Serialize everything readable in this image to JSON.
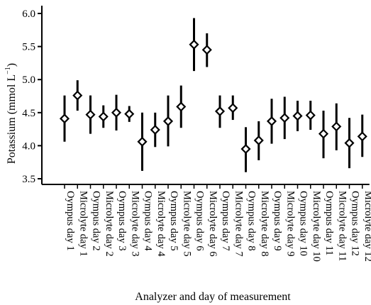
{
  "chart_data": {
    "type": "scatter",
    "title": "",
    "xlabel": "Analyzer and day of measurement",
    "ylabel_main": "Potassium (mmol L",
    "ylabel_sup": "−1",
    "ylabel_tail": ")",
    "ylim": [
      3.4,
      6.1
    ],
    "yticks": [
      3.5,
      4.0,
      4.5,
      5.0,
      5.5,
      6.0
    ],
    "ytick_labels": [
      "3.5",
      "4.0",
      "4.5",
      "5.0",
      "5.5",
      "6.0"
    ],
    "grid": false,
    "legend": "none",
    "marker": "open-diamond",
    "color": "#000000",
    "categories": [
      "Oympus day 1",
      "Microlyte day 1",
      "Oympus day 2",
      "Microlyte day 2",
      "Oympus day 3",
      "Microlyte day 3",
      "Oympus day 4",
      "Microlyte day 4",
      "Oympus day 5",
      "Microlyte day 5",
      "Oympus day 6",
      "Microlyte day 6",
      "Oympus day 7",
      "Microlyte day 7",
      "Oympus day 8",
      "Microlyte day 8",
      "Oympus day 9",
      "Microlyte day 9",
      "Oympus day 10",
      "Microlyte day 10",
      "Oympus day 11",
      "Microlyte day 11",
      "Oympus day 12",
      "Microlyte day 12"
    ],
    "values": [
      4.41,
      4.76,
      4.47,
      4.44,
      4.5,
      4.48,
      4.06,
      4.24,
      4.37,
      4.59,
      5.53,
      5.45,
      4.52,
      4.57,
      3.95,
      4.08,
      4.37,
      4.42,
      4.45,
      4.46,
      4.18,
      4.29,
      4.04,
      4.14
    ],
    "error_low": [
      4.06,
      4.53,
      4.18,
      4.27,
      4.23,
      4.36,
      3.62,
      3.98,
      3.99,
      4.27,
      5.13,
      5.19,
      4.27,
      4.39,
      3.6,
      3.78,
      4.03,
      4.1,
      4.22,
      4.24,
      3.81,
      3.93,
      3.66,
      3.83
    ],
    "error_high": [
      4.76,
      4.99,
      4.76,
      4.61,
      4.77,
      4.6,
      4.5,
      4.5,
      4.76,
      4.91,
      5.93,
      5.7,
      4.76,
      4.76,
      4.28,
      4.37,
      4.71,
      4.74,
      4.68,
      4.68,
      4.53,
      4.64,
      4.42,
      4.47
    ]
  }
}
